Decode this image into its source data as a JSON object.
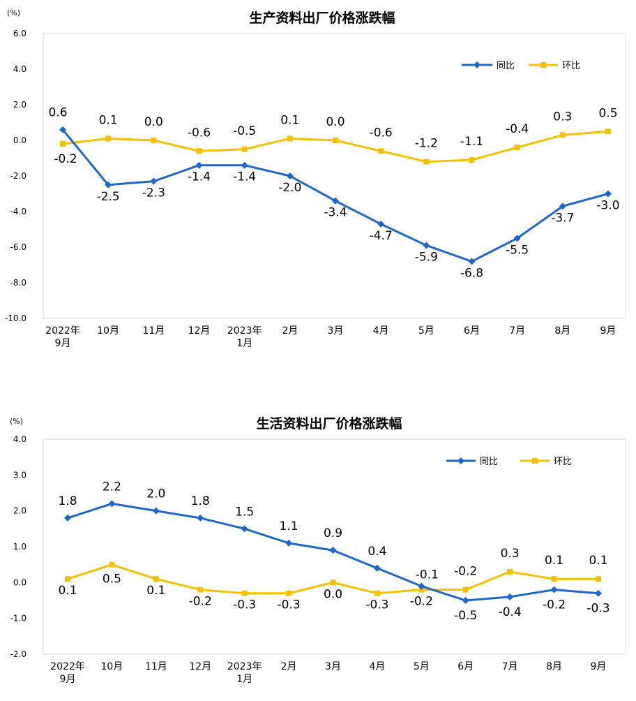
{
  "chart_data": [
    {
      "type": "line",
      "title": "生产资料出厂价格涨跌幅",
      "unit_label": "(%)",
      "categories": [
        [
          "2022年",
          "9月"
        ],
        [
          "10月"
        ],
        [
          "11月"
        ],
        [
          "12月"
        ],
        [
          "2023年",
          "1月"
        ],
        [
          "2月"
        ],
        [
          "3月"
        ],
        [
          "4月"
        ],
        [
          "5月"
        ],
        [
          "6月"
        ],
        [
          "7月"
        ],
        [
          "8月"
        ],
        [
          "9月"
        ]
      ],
      "ylim": [
        -10,
        6
      ],
      "y_ticks": [
        "6.0",
        "4.0",
        "2.0",
        "0.0",
        "-2.0",
        "-4.0",
        "-6.0",
        "-8.0",
        "-10.0"
      ],
      "grid": false,
      "legend_position": "top-right",
      "series": [
        {
          "name": "同比",
          "color": "#1f66c9",
          "marker": "diamond",
          "values": [
            0.6,
            -2.5,
            -2.3,
            -1.4,
            -1.4,
            -2.0,
            -3.4,
            -4.7,
            -5.9,
            -6.8,
            -5.5,
            -3.7,
            -3.0
          ],
          "labels": [
            "0.6",
            "-2.5",
            "-2.3",
            "-1.4",
            "-1.4",
            "-2.0",
            "-3.4",
            "-4.7",
            "-5.9",
            "-6.8",
            "-5.5",
            "-3.7",
            "-3.0"
          ]
        },
        {
          "name": "环比",
          "color": "#f5c000",
          "marker": "square",
          "values": [
            -0.2,
            0.1,
            0.0,
            -0.6,
            -0.5,
            0.1,
            0.0,
            -0.6,
            -1.2,
            -1.1,
            -0.4,
            0.3,
            0.5
          ],
          "labels": [
            "-0.2",
            "0.1",
            "0.0",
            "-0.6",
            "-0.5",
            "0.1",
            "0.0",
            "-0.6",
            "-1.2",
            "-1.1",
            "-0.4",
            "0.3",
            "0.5"
          ]
        }
      ]
    },
    {
      "type": "line",
      "title": "生活资料出厂价格涨跌幅",
      "unit_label": "(%)",
      "categories": [
        [
          "2022年",
          "9月"
        ],
        [
          "10月"
        ],
        [
          "11月"
        ],
        [
          "12月"
        ],
        [
          "2023年",
          "1月"
        ],
        [
          "2月"
        ],
        [
          "3月"
        ],
        [
          "4月"
        ],
        [
          "5月"
        ],
        [
          "6月"
        ],
        [
          "7月"
        ],
        [
          "8月"
        ],
        [
          "9月"
        ]
      ],
      "ylim": [
        -2,
        4
      ],
      "y_ticks": [
        "4.0",
        "3.0",
        "2.0",
        "1.0",
        "0.0",
        "-1.0",
        "-2.0"
      ],
      "grid": false,
      "legend_position": "top-right",
      "series": [
        {
          "name": "同比",
          "color": "#1f66c9",
          "marker": "diamond",
          "values": [
            1.8,
            2.2,
            2.0,
            1.8,
            1.5,
            1.1,
            0.9,
            0.4,
            -0.1,
            -0.5,
            -0.4,
            -0.2,
            -0.3
          ],
          "labels": [
            "1.8",
            "2.2",
            "2.0",
            "1.8",
            "1.5",
            "1.1",
            "0.9",
            "0.4",
            "-0.1",
            "-0.5",
            "-0.4",
            "-0.2",
            "-0.3"
          ]
        },
        {
          "name": "环比",
          "color": "#f5c000",
          "marker": "square",
          "values": [
            0.1,
            0.5,
            0.1,
            -0.2,
            -0.3,
            -0.3,
            0.0,
            -0.3,
            -0.2,
            -0.2,
            0.3,
            0.1,
            0.1
          ],
          "labels": [
            "0.1",
            "0.5",
            "0.1",
            "-0.2",
            "-0.3",
            "-0.3",
            "0.0",
            "-0.3",
            "-0.2",
            "-0.2",
            "0.3",
            "0.1",
            "0.1"
          ]
        }
      ]
    }
  ]
}
